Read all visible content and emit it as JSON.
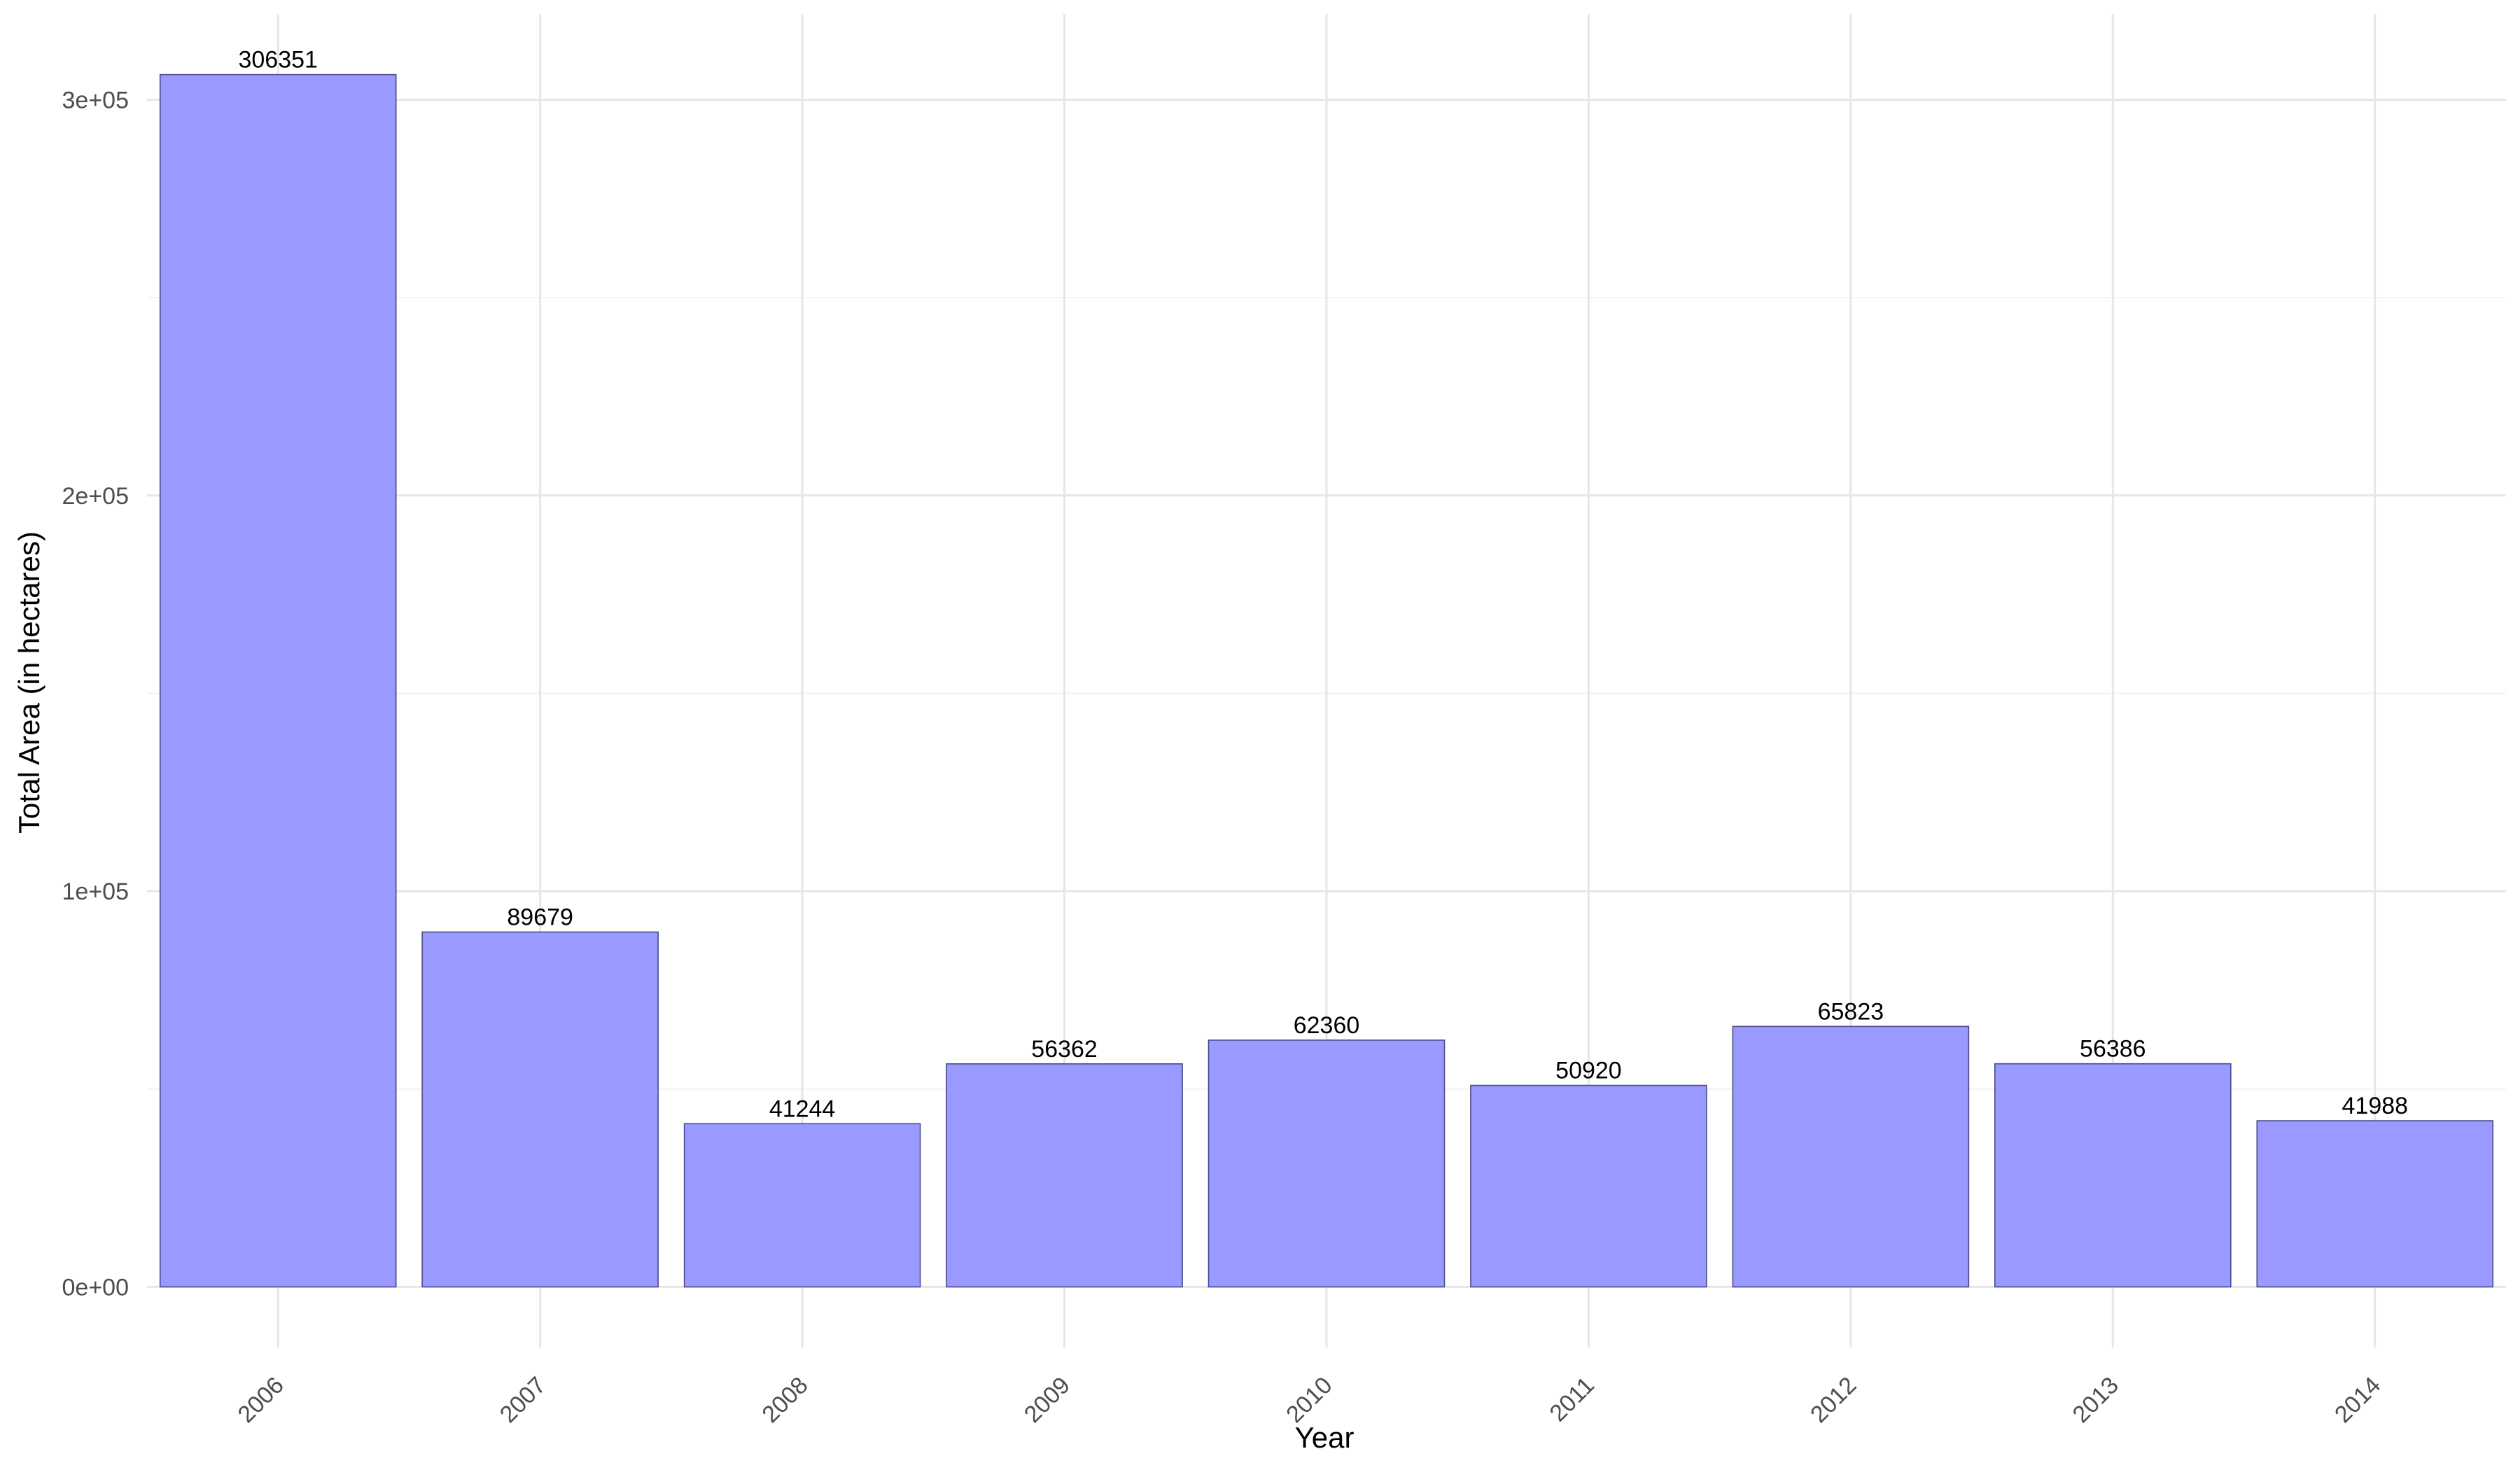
{
  "chart_data": {
    "type": "bar",
    "title": "",
    "xlabel": "Year",
    "ylabel": "Total Area (in hectares)",
    "categories": [
      "2006",
      "2007",
      "2008",
      "2009",
      "2010",
      "2011",
      "2012",
      "2013",
      "2014"
    ],
    "values": [
      306351,
      89679,
      41244,
      56362,
      62360,
      50920,
      65823,
      56386,
      41988
    ],
    "data_labels": [
      "306351",
      "89679",
      "41244",
      "56362",
      "62360",
      "50920",
      "65823",
      "56386",
      "41988"
    ],
    "y_ticks": [
      0,
      100000,
      200000,
      300000
    ],
    "y_tick_labels": [
      "0e+00",
      "1e+05",
      "2e+05",
      "3e+05"
    ],
    "ylim": [
      -15317.55,
      321668.55
    ],
    "grid": true,
    "legend": "none",
    "colors": {
      "bar_fill": "#9999ff",
      "bar_outline": "#4a4a8a",
      "grid": "#e6e6e6"
    }
  }
}
